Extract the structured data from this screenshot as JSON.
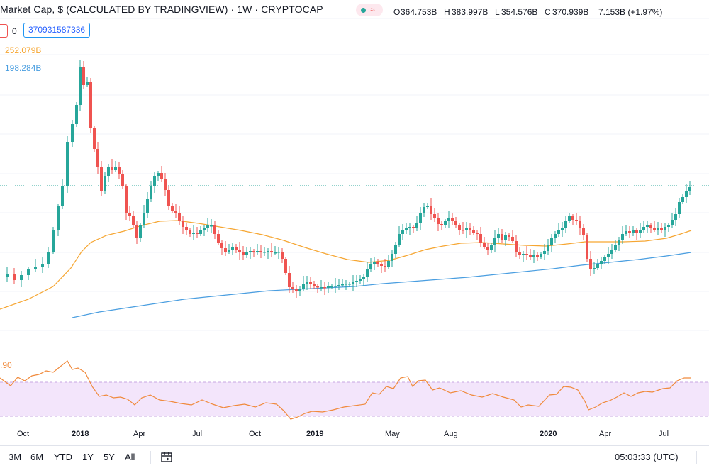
{
  "header": {
    "title": "Market Cap, $ (CALCULATED BY TRADINGVIEW) · 1W · CRYPTOCAP",
    "open_label": "O",
    "open": "364.753B",
    "high_label": "H",
    "high": "383.997B",
    "low_label": "L",
    "low": "354.576B",
    "close_label": "C",
    "close": "370.939B",
    "change": "7.153B (+1.97%)"
  },
  "volume_row": {
    "value_zero": "0",
    "volume": "370931587336"
  },
  "ma_labels": {
    "ma50": "252.079B",
    "ma200": "198.284B"
  },
  "rsi": {
    "value_label": ".90"
  },
  "x_axis": [
    {
      "label": "Oct",
      "bold": false
    },
    {
      "label": "2018",
      "bold": true
    },
    {
      "label": "Apr",
      "bold": false
    },
    {
      "label": "Jul",
      "bold": false
    },
    {
      "label": "Oct",
      "bold": false
    },
    {
      "label": "2019",
      "bold": true
    },
    {
      "label": "May",
      "bold": false
    },
    {
      "label": "Aug",
      "bold": false
    },
    {
      "label": "2020",
      "bold": true
    },
    {
      "label": "Apr",
      "bold": false
    },
    {
      "label": "Jul",
      "bold": false
    }
  ],
  "toolbar": {
    "ranges": [
      "3M",
      "6M",
      "YTD",
      "1Y",
      "5Y",
      "All"
    ],
    "time": "05:03:33 (UTC)"
  },
  "colors": {
    "up": "#26a69a",
    "down": "#ef5350",
    "ma50": "#f6a632",
    "ma200": "#4a9ee0",
    "rsi": "#f08a3c",
    "band": "#f3e5fb"
  },
  "chart_data": {
    "type": "candlestick",
    "timeframe": "1W",
    "series": [
      {
        "name": "Market Cap",
        "type": "candlestick"
      },
      {
        "name": "MA",
        "type": "line"
      },
      {
        "name": "MA",
        "type": "line"
      },
      {
        "name": "RSI",
        "type": "line"
      }
    ]
  }
}
